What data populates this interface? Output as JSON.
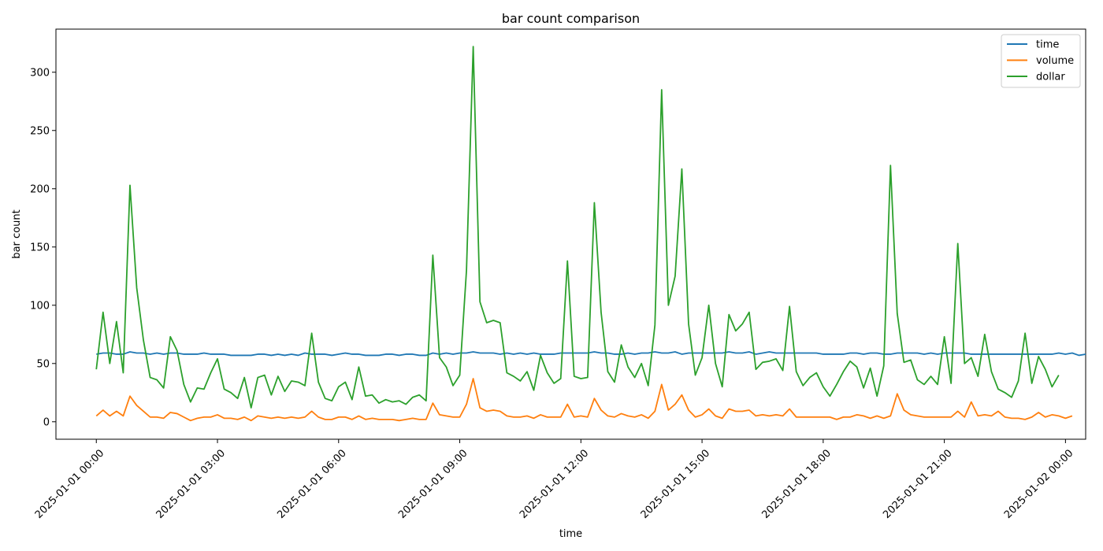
{
  "chart_data": {
    "type": "line",
    "title": "bar count comparison",
    "xlabel": "time",
    "ylabel": "bar count",
    "x_start": "2025-01-01 00:00",
    "x_step_minutes": 10,
    "xlim": [
      "2024-12-31 23:00",
      "2025-01-02 00:30"
    ],
    "ylim": [
      -15,
      337
    ],
    "grid": false,
    "legend_position": "top-right",
    "x_ticks": [
      "2025-01-01 00:00",
      "2025-01-01 03:00",
      "2025-01-01 06:00",
      "2025-01-01 09:00",
      "2025-01-01 12:00",
      "2025-01-01 15:00",
      "2025-01-01 18:00",
      "2025-01-01 21:00",
      "2025-01-02 00:00"
    ],
    "y_ticks": [
      0,
      50,
      100,
      150,
      200,
      250,
      300
    ],
    "series": [
      {
        "name": "time",
        "color": "#1f77b4",
        "values": [
          58,
          59,
          59,
          58,
          58,
          60,
          59,
          59,
          58,
          59,
          58,
          59,
          59,
          58,
          58,
          58,
          59,
          58,
          58,
          58,
          57,
          57,
          57,
          57,
          58,
          58,
          57,
          58,
          57,
          58,
          57,
          59,
          58,
          58,
          58,
          57,
          58,
          59,
          58,
          58,
          57,
          57,
          57,
          58,
          58,
          57,
          58,
          58,
          57,
          57,
          59,
          58,
          59,
          58,
          59,
          59,
          60,
          59,
          59,
          59,
          58,
          59,
          58,
          59,
          58,
          59,
          58,
          58,
          58,
          59,
          59,
          59,
          59,
          59,
          60,
          59,
          59,
          58,
          58,
          59,
          58,
          59,
          59,
          60,
          59,
          59,
          60,
          58,
          59,
          59,
          59,
          59,
          59,
          59,
          60,
          59,
          59,
          60,
          58,
          59,
          60,
          59,
          59,
          59,
          59,
          59,
          59,
          59,
          58,
          58,
          58,
          58,
          59,
          59,
          58,
          59,
          59,
          58,
          58,
          59,
          59,
          59,
          59,
          58,
          59,
          58,
          59,
          59,
          59,
          59,
          58,
          58,
          58,
          58,
          58,
          58,
          58,
          58,
          58,
          58,
          58,
          58,
          58,
          59,
          58,
          59,
          57,
          58
        ]
      },
      {
        "name": "volume",
        "color": "#ff7f0e",
        "values": [
          5,
          10,
          5,
          9,
          5,
          22,
          14,
          9,
          4,
          4,
          3,
          8,
          7,
          4,
          1,
          3,
          4,
          4,
          6,
          3,
          3,
          2,
          4,
          1,
          5,
          4,
          3,
          4,
          3,
          4,
          3,
          4,
          9,
          4,
          2,
          2,
          4,
          4,
          2,
          5,
          2,
          3,
          2,
          2,
          2,
          1,
          2,
          3,
          2,
          2,
          16,
          6,
          5,
          4,
          4,
          15,
          37,
          12,
          9,
          10,
          9,
          5,
          4,
          4,
          5,
          3,
          6,
          4,
          4,
          4,
          15,
          4,
          5,
          4,
          20,
          10,
          5,
          4,
          7,
          5,
          4,
          6,
          3,
          9,
          32,
          10,
          15,
          23,
          10,
          4,
          6,
          11,
          5,
          3,
          11,
          9,
          9,
          10,
          5,
          6,
          5,
          6,
          5,
          11,
          4,
          4,
          4,
          4,
          4,
          4,
          2,
          4,
          4,
          6,
          5,
          3,
          5,
          3,
          5,
          24,
          10,
          6,
          5,
          4,
          4,
          4,
          4,
          4,
          9,
          4,
          17,
          5,
          6,
          5,
          9,
          4,
          3,
          3,
          2,
          4,
          8,
          4,
          6,
          5,
          3,
          5
        ]
      },
      {
        "name": "dollar",
        "color": "#2ca02c",
        "values": [
          45,
          94,
          50,
          86,
          42,
          203,
          115,
          70,
          38,
          36,
          29,
          73,
          61,
          32,
          17,
          29,
          28,
          42,
          54,
          28,
          25,
          20,
          38,
          12,
          38,
          40,
          23,
          39,
          26,
          35,
          34,
          31,
          76,
          34,
          20,
          18,
          30,
          34,
          19,
          47,
          22,
          23,
          16,
          19,
          17,
          18,
          15,
          21,
          23,
          18,
          143,
          55,
          47,
          31,
          40,
          130,
          322,
          103,
          85,
          87,
          85,
          42,
          39,
          35,
          43,
          27,
          57,
          42,
          33,
          37,
          138,
          39,
          37,
          38,
          188,
          94,
          43,
          34,
          66,
          47,
          38,
          50,
          31,
          83,
          285,
          100,
          125,
          217,
          84,
          40,
          55,
          100,
          50,
          30,
          92,
          78,
          84,
          94,
          45,
          51,
          52,
          54,
          44,
          99,
          43,
          31,
          38,
          42,
          30,
          22,
          32,
          43,
          52,
          47,
          29,
          46,
          22,
          48,
          220,
          93,
          51,
          53,
          36,
          32,
          39,
          32,
          73,
          33,
          153,
          50,
          55,
          39,
          75,
          43,
          28,
          25,
          21,
          35,
          76,
          33,
          56,
          45,
          30,
          40
        ]
      }
    ]
  }
}
